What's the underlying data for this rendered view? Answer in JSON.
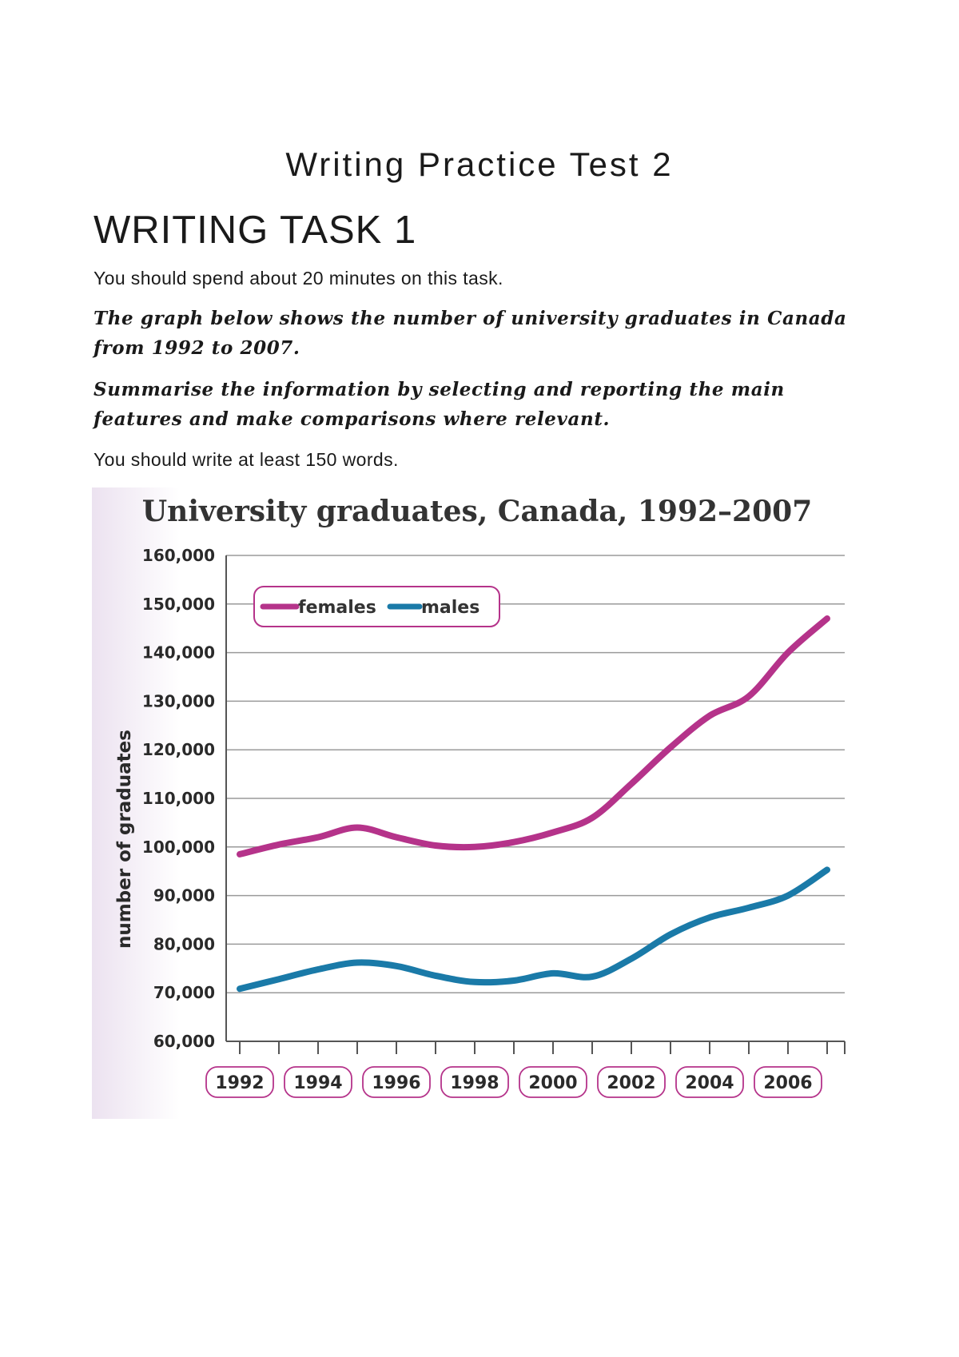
{
  "header": {
    "title": "Writing Practice Test 2"
  },
  "task": {
    "heading": "WRITING TASK 1",
    "time_instruction": "You should spend about 20 minutes on this task.",
    "prompt_line1": "The graph below shows the number of university graduates in Canada",
    "prompt_line2": "from 1992 to 2007.",
    "summary_line1": "Summarise the information by selecting and reporting the main",
    "summary_line2": "features and make comparisons where relevant.",
    "word_instruction": "You should write at least 150 words."
  },
  "chart_data": {
    "type": "line",
    "title": "University graduates, Canada, 1992–2007",
    "xlabel": "",
    "ylabel": "number of graduates",
    "x": [
      1992,
      1993,
      1994,
      1995,
      1996,
      1997,
      1998,
      1999,
      2000,
      2001,
      2002,
      2003,
      2004,
      2005,
      2006,
      2007
    ],
    "x_tick_labels": [
      "1992",
      "1994",
      "1996",
      "1998",
      "2000",
      "2002",
      "2004",
      "2006"
    ],
    "x_tick_years": [
      1992,
      1994,
      1996,
      1998,
      2000,
      2002,
      2004,
      2006
    ],
    "ylim": [
      60000,
      160000
    ],
    "y_ticks": [
      60000,
      70000,
      80000,
      90000,
      100000,
      110000,
      120000,
      130000,
      140000,
      150000,
      160000
    ],
    "y_tick_labels": [
      "60,000",
      "70,000",
      "80,000",
      "90,000",
      "100,000",
      "110,000",
      "120,000",
      "130,000",
      "140,000",
      "150,000",
      "160,000"
    ],
    "grid": true,
    "legend_position": "top-left",
    "series": [
      {
        "name": "females",
        "color": "#b5338a",
        "values": [
          98500,
          100500,
          102000,
          104000,
          102000,
          100300,
          100000,
          101000,
          103000,
          106000,
          113000,
          120500,
          127000,
          131000,
          140000,
          147000
        ]
      },
      {
        "name": "males",
        "color": "#1a7aa8",
        "values": [
          70800,
          72800,
          74800,
          76200,
          75500,
          73500,
          72200,
          72500,
          74000,
          73300,
          77000,
          82000,
          85500,
          87500,
          90000,
          95300
        ]
      }
    ],
    "colors": {
      "legend_border": "#b5338a",
      "year_badge_border": "#b5338a",
      "grid": "#9a9a9a",
      "axis": "#555555"
    }
  }
}
